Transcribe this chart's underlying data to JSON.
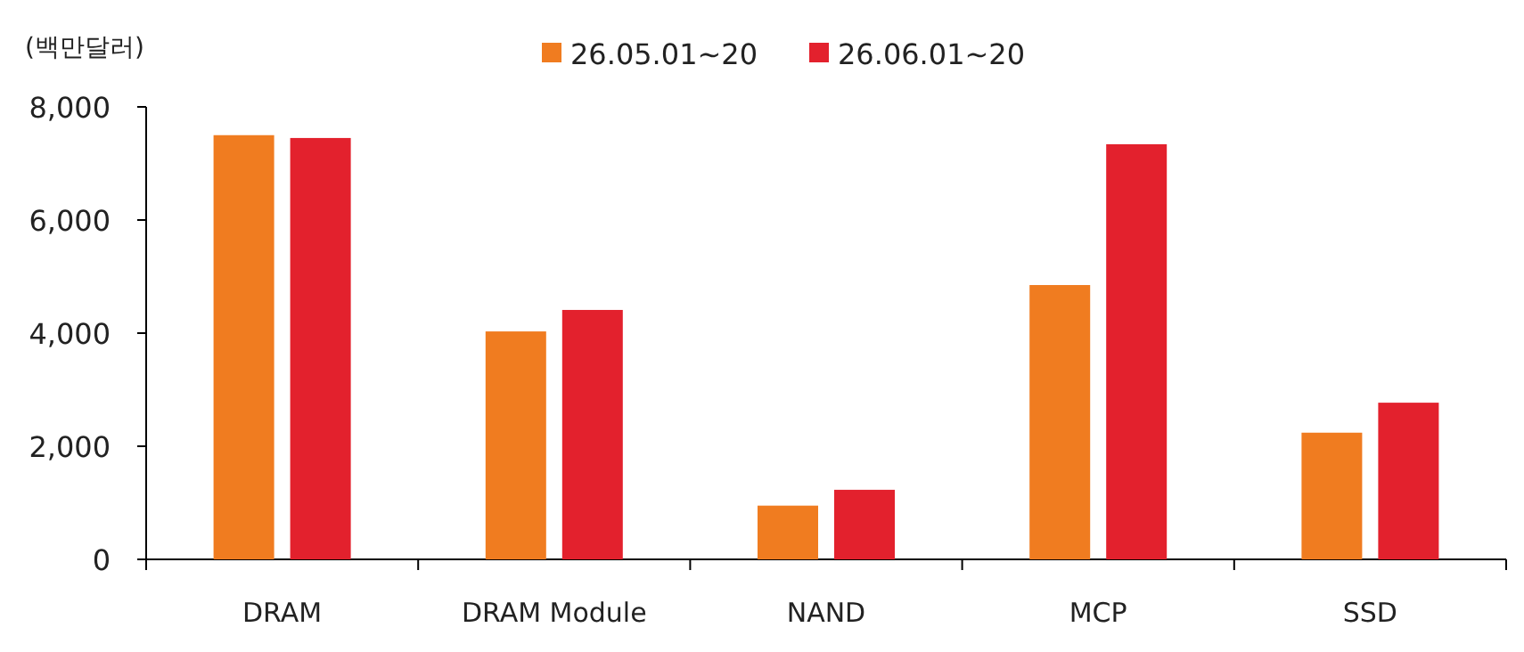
{
  "chart_data": {
    "type": "bar",
    "ylabel": "(백만달러)",
    "categories": [
      "DRAM",
      "DRAM Module",
      "NAND",
      "MCP",
      "SSD"
    ],
    "series": [
      {
        "name": "26.05.01~20",
        "color": "#f07c20",
        "values": [
          7500,
          4030,
          950,
          4850,
          2240
        ]
      },
      {
        "name": "26.06.01~20",
        "color": "#e3212d",
        "values": [
          7450,
          4410,
          1230,
          7340,
          2770
        ]
      }
    ],
    "ylim": [
      0,
      8000
    ],
    "yticks": [
      0,
      {
        "value": 2000,
        "label": "2,000"
      },
      {
        "value": 4000,
        "label": "4,000"
      },
      {
        "value": 6000,
        "label": "6,000"
      },
      {
        "value": 8000,
        "label": "8,000"
      }
    ],
    "grid": false,
    "legend": "top"
  }
}
